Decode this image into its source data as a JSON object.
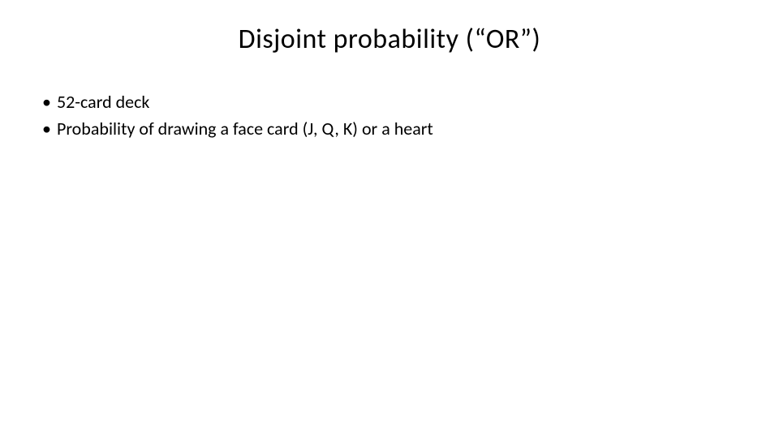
{
  "slide": {
    "title": "Disjoint probability (“OR”)",
    "bullets": [
      "52-card deck",
      "Probability of drawing a face card (J, Q, K) or a heart"
    ],
    "colors": {
      "background": "#ffffff",
      "text": "#000000"
    },
    "typography": {
      "title_fontsize": 34,
      "bullet_fontsize": 22,
      "font_family": "Calibri"
    }
  }
}
